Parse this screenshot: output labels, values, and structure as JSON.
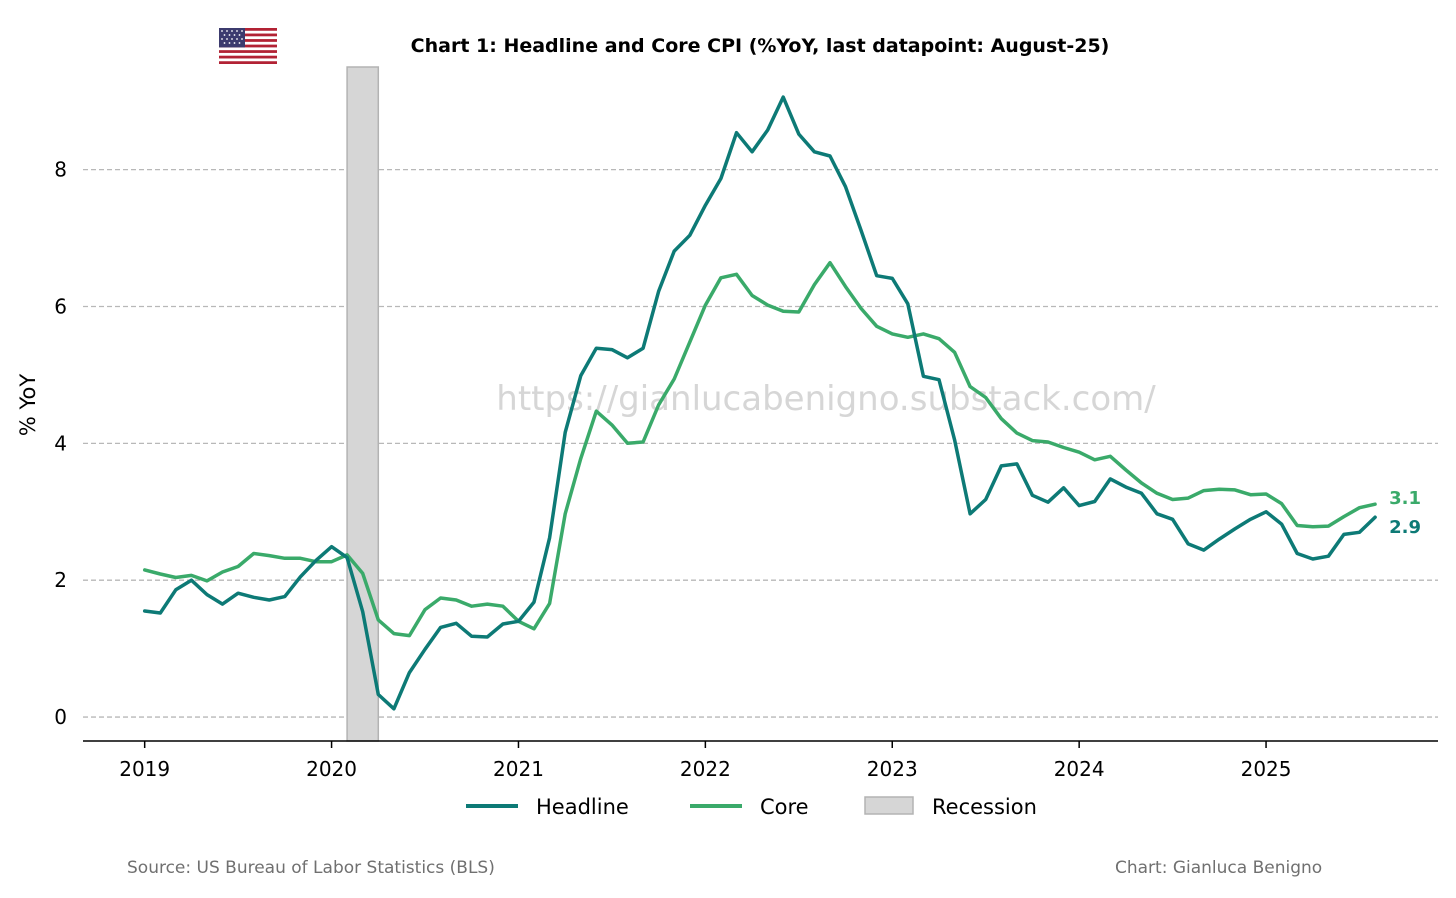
{
  "title": "Chart 1: Headline and Core CPI (%YoY, last datapoint: August-25)",
  "watermark": "https://gianlucabenigno.substack.com/",
  "source": "Source: US Bureau of Labor Statistics (BLS)",
  "credit": "Chart: Gianluca Benigno",
  "flag_icon": "us-flag-icon",
  "chart_data": {
    "type": "line",
    "title": "Chart 1: Headline and Core CPI (%YoY, last datapoint: August-25)",
    "xlabel": "",
    "ylabel": "% YoY",
    "x_start": "2019-01",
    "x_end": "2025-08",
    "x_ticks": [
      2019,
      2020,
      2021,
      2022,
      2023,
      2024,
      2025
    ],
    "x_tick_labels": [
      "2019",
      "2020",
      "2021",
      "2022",
      "2023",
      "2024",
      "2025"
    ],
    "xlim": [
      2018.67,
      2025.92
    ],
    "ylim": [
      -0.35,
      9.5
    ],
    "y_ticks": [
      0,
      2,
      4,
      6,
      8
    ],
    "y_tick_labels": [
      "0",
      "2",
      "4",
      "6",
      "8"
    ],
    "grid": "horizontal dashed",
    "legend_position": "bottom-center",
    "legend": [
      "Headline",
      "Core",
      "Recession"
    ],
    "recession": {
      "start": 2020.083,
      "end": 2020.25,
      "color": "#d6d6d6"
    },
    "series": [
      {
        "name": "Headline",
        "color": "#0d7a76",
        "end_label": "2.9",
        "values": [
          1.55,
          1.52,
          1.86,
          2.0,
          1.79,
          1.65,
          1.81,
          1.75,
          1.71,
          1.76,
          2.05,
          2.29,
          2.49,
          2.33,
          1.54,
          0.33,
          0.12,
          0.65,
          0.99,
          1.31,
          1.37,
          1.18,
          1.17,
          1.36,
          1.4,
          1.68,
          2.62,
          4.16,
          4.99,
          5.39,
          5.37,
          5.25,
          5.39,
          6.22,
          6.81,
          7.04,
          7.48,
          7.87,
          8.54,
          8.26,
          8.58,
          9.06,
          8.52,
          8.26,
          8.2,
          7.75,
          7.11,
          6.45,
          6.41,
          6.04,
          4.98,
          4.93,
          4.05,
          2.97,
          3.18,
          3.67,
          3.7,
          3.24,
          3.14,
          3.35,
          3.09,
          3.15,
          3.48,
          3.36,
          3.27,
          2.97,
          2.89,
          2.53,
          2.44,
          2.6,
          2.75,
          2.89,
          3.0,
          2.82,
          2.39,
          2.31,
          2.35,
          2.67,
          2.7,
          2.92
        ]
      },
      {
        "name": "Core",
        "color": "#3aaa6a",
        "end_label": "3.1",
        "values": [
          2.15,
          2.09,
          2.04,
          2.07,
          1.99,
          2.12,
          2.2,
          2.39,
          2.36,
          2.32,
          2.32,
          2.27,
          2.27,
          2.37,
          2.1,
          1.42,
          1.22,
          1.19,
          1.57,
          1.74,
          1.71,
          1.62,
          1.65,
          1.62,
          1.4,
          1.29,
          1.66,
          2.97,
          3.78,
          4.47,
          4.27,
          4.0,
          4.02,
          4.56,
          4.94,
          5.48,
          6.02,
          6.42,
          6.47,
          6.16,
          6.02,
          5.93,
          5.92,
          6.32,
          6.64,
          6.29,
          5.97,
          5.71,
          5.6,
          5.55,
          5.6,
          5.53,
          5.33,
          4.83,
          4.67,
          4.36,
          4.15,
          4.04,
          4.02,
          3.94,
          3.87,
          3.76,
          3.81,
          3.61,
          3.42,
          3.27,
          3.18,
          3.2,
          3.31,
          3.33,
          3.32,
          3.25,
          3.26,
          3.12,
          2.8,
          2.78,
          2.79,
          2.93,
          3.06,
          3.11
        ]
      }
    ]
  }
}
